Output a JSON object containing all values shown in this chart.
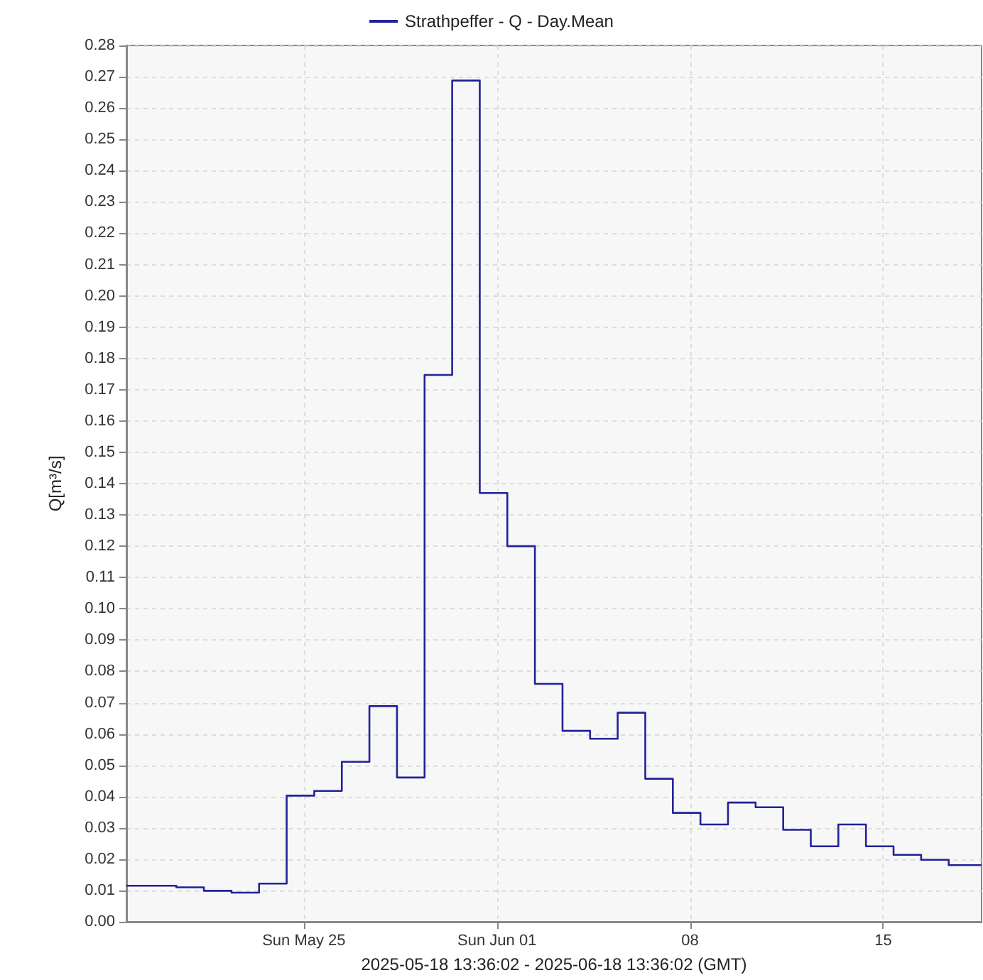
{
  "chart_data": {
    "type": "step",
    "xlabel": "2025-05-18 13:36:02 - 2025-06-18 13:36:02 (GMT)",
    "ylabel": "Q[m³/s]",
    "x": [
      "2025-05-18T13:36",
      "2025-05-19T09:00",
      "2025-05-20T09:00",
      "2025-05-21T09:00",
      "2025-05-22T09:00",
      "2025-05-23T09:00",
      "2025-05-24T09:00",
      "2025-05-25T09:00",
      "2025-05-26T09:00",
      "2025-05-27T09:00",
      "2025-05-28T09:00",
      "2025-05-29T09:00",
      "2025-05-30T09:00",
      "2025-05-31T09:00",
      "2025-06-01T09:00",
      "2025-06-02T09:00",
      "2025-06-03T09:00",
      "2025-06-04T09:00",
      "2025-06-05T09:00",
      "2025-06-06T09:00",
      "2025-06-07T09:00",
      "2025-06-08T09:00",
      "2025-06-09T09:00",
      "2025-06-10T09:00",
      "2025-06-11T09:00",
      "2025-06-12T09:00",
      "2025-06-13T09:00",
      "2025-06-14T09:00",
      "2025-06-15T09:00",
      "2025-06-16T09:00",
      "2025-06-17T09:00",
      "2025-06-18T13:36"
    ],
    "series": [
      {
        "name": "Strathpeffer - Q - Day.Mean",
        "color": "#22229a",
        "values": [
          0.0115,
          0.0115,
          0.011,
          0.0099,
          0.0093,
          0.0122,
          0.0403,
          0.0418,
          0.0511,
          0.0689,
          0.0461,
          0.1747,
          0.2688,
          0.137,
          0.12,
          0.076,
          0.061,
          0.0585,
          0.0668,
          0.0457,
          0.0348,
          0.0311,
          0.0381,
          0.0366,
          0.0294,
          0.0241,
          0.0311,
          0.0241,
          0.0214,
          0.0198,
          0.0181,
          0.0181
        ]
      }
    ],
    "xlim": [
      "2025-05-18T13:36",
      "2025-06-18T13:36"
    ],
    "xticks": [
      {
        "value": "2025-05-25",
        "label": "Sun May 25"
      },
      {
        "value": "2025-06-01",
        "label": "Sun Jun 01"
      },
      {
        "value": "2025-06-08",
        "label": "08"
      },
      {
        "value": "2025-06-15",
        "label": "15"
      }
    ],
    "ylim": [
      0,
      0.28
    ],
    "yticks": [
      {
        "value": 0,
        "label": "0.00"
      },
      {
        "value": 0.01,
        "label": "0.01"
      },
      {
        "value": 0.02,
        "label": "0.02"
      },
      {
        "value": 0.03,
        "label": "0.03"
      },
      {
        "value": 0.04,
        "label": "0.04"
      },
      {
        "value": 0.05,
        "label": "0.05"
      },
      {
        "value": 0.06,
        "label": "0.06"
      },
      {
        "value": 0.07,
        "label": "0.07"
      },
      {
        "value": 0.08,
        "label": "0.08"
      },
      {
        "value": 0.09,
        "label": "0.09"
      },
      {
        "value": 0.1,
        "label": "0.10"
      },
      {
        "value": 0.11,
        "label": "0.11"
      },
      {
        "value": 0.12,
        "label": "0.12"
      },
      {
        "value": 0.13,
        "label": "0.13"
      },
      {
        "value": 0.14,
        "label": "0.14"
      },
      {
        "value": 0.15,
        "label": "0.15"
      },
      {
        "value": 0.16,
        "label": "0.16"
      },
      {
        "value": 0.17,
        "label": "0.17"
      },
      {
        "value": 0.18,
        "label": "0.18"
      },
      {
        "value": 0.19,
        "label": "0.19"
      },
      {
        "value": 0.2,
        "label": "0.20"
      },
      {
        "value": 0.21,
        "label": "0.21"
      },
      {
        "value": 0.22,
        "label": "0.22"
      },
      {
        "value": 0.23,
        "label": "0.23"
      },
      {
        "value": 0.24,
        "label": "0.24"
      },
      {
        "value": 0.25,
        "label": "0.25"
      },
      {
        "value": 0.26,
        "label": "0.26"
      },
      {
        "value": 0.27,
        "label": "0.27"
      },
      {
        "value": 0.28,
        "label": "0.28"
      }
    ],
    "grid": true,
    "legend": "top",
    "marker": "none",
    "line_style": "solid"
  }
}
